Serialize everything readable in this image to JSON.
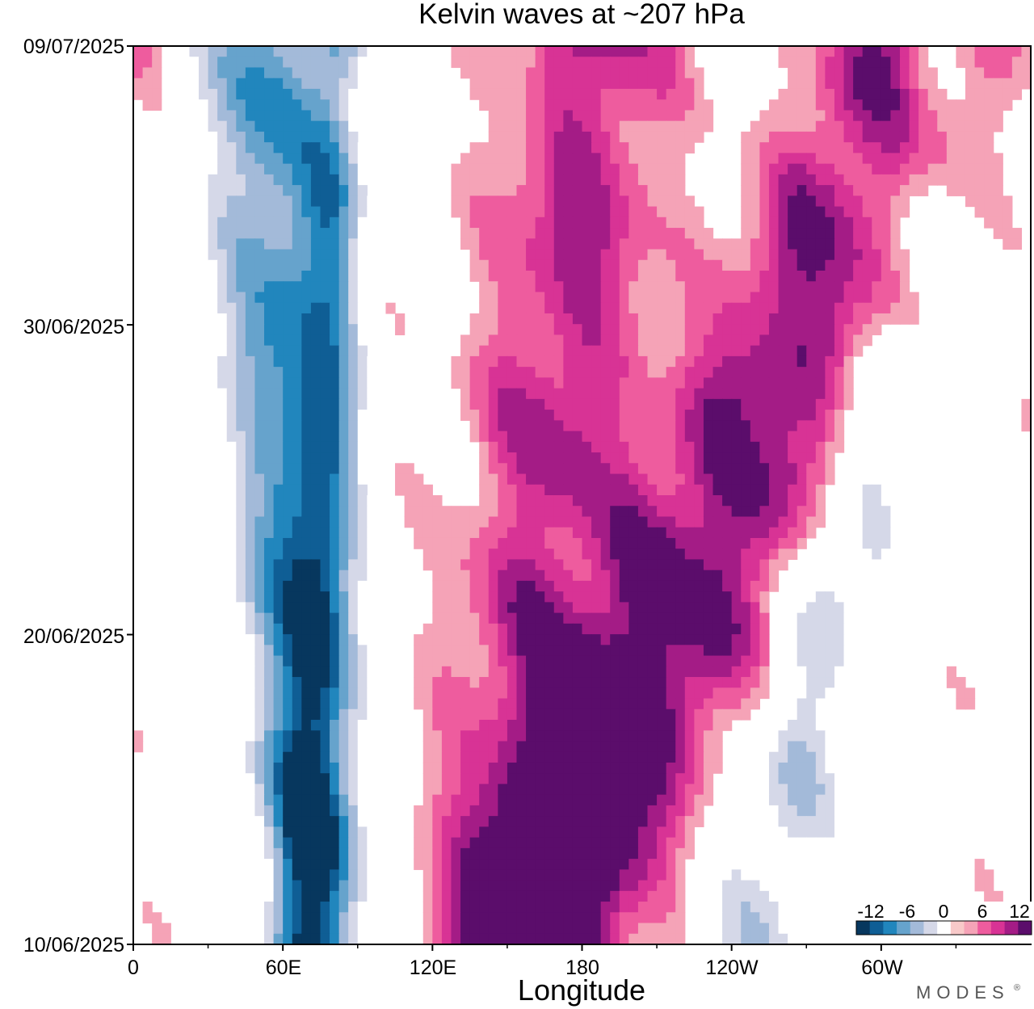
{
  "chart_data": {
    "type": "heatmap",
    "title": "Kelvin waves at ~207 hPa",
    "xlabel": "Longitude",
    "ylabel": "",
    "x_ticks": [
      "0",
      "60E",
      "120E",
      "180",
      "120W",
      "60W"
    ],
    "x_tick_values": [
      0,
      60,
      120,
      180,
      240,
      300
    ],
    "xlim": [
      0,
      360
    ],
    "y_ticks": [
      "09/07/2025",
      "30/06/2025",
      "20/06/2025",
      "10/06/2025"
    ],
    "y_tick_values": [
      "2025-07-09",
      "2025-06-30",
      "2025-06-20",
      "2025-06-10"
    ],
    "ylim": [
      "2025-06-10",
      "2025-07-09"
    ],
    "colorbar": {
      "labels": [
        "-12",
        "-6",
        "0",
        "6",
        "12"
      ],
      "label_values": [
        -12,
        -6,
        0,
        6,
        12
      ],
      "levels": [
        -14,
        -12,
        -10,
        -8,
        -6,
        -4,
        -2,
        2,
        4,
        6,
        8,
        10,
        12,
        14
      ],
      "colors": [
        "#07375e",
        "#0f5e95",
        "#2186bd",
        "#66a3cc",
        "#a3bad9",
        "#d5d8e8",
        "#ffffff",
        "#f8c9c9",
        "#f5a3b7",
        "#ee5c9e",
        "#d83395",
        "#a41c86",
        "#5b0d6b"
      ]
    },
    "features": [
      {
        "name": "negative band 1",
        "center_lon_start": 75,
        "center_lon_end": 50,
        "width_deg": 34,
        "peak": -11.5
      },
      {
        "name": "negative band 2",
        "center_lon_start": 70,
        "center_lon_end": 82,
        "width_deg": 20,
        "peak": -9.0
      },
      {
        "name": "positive wave 1",
        "center_lon_start": 150,
        "center_lon_end": 185,
        "width_deg": 55,
        "peak": 9.5
      },
      {
        "name": "positive wave 2",
        "center_lon_start": 150,
        "center_lon_end": 300,
        "width_deg": 45,
        "peak": 9.5
      },
      {
        "name": "positive wave 3",
        "center_lon_start": 180,
        "center_lon_end": 340,
        "width_deg": 40,
        "peak": 8.0
      },
      {
        "name": "negative patch east",
        "center_lon_start": 250,
        "center_lon_end": 330,
        "width_deg": 30,
        "peak": -6.0
      }
    ]
  },
  "brand": "MODES",
  "brand_mark": "®"
}
